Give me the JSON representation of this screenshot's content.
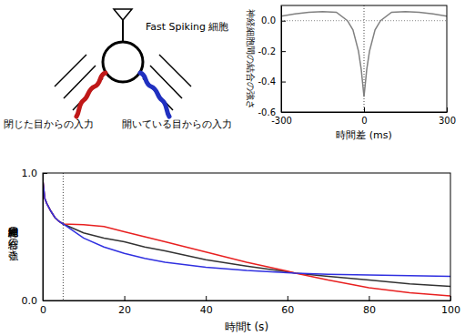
{
  "diagram": {
    "labels": {
      "neuron": "Fast Spiking 細胞",
      "closed_eye": "閉じた目からの入力",
      "open_eye": "開いている目からの入力"
    }
  },
  "chart_data": [
    {
      "type": "line",
      "x_label": "時間差 (ms)",
      "y_label": "神経細胞間の結合の強さ",
      "x": [
        -300,
        -250,
        -200,
        -150,
        -100,
        -60,
        -40,
        -20,
        -10,
        0,
        10,
        20,
        40,
        60,
        100,
        150,
        200,
        250,
        300
      ],
      "values": [
        0.03,
        0.045,
        0.055,
        0.06,
        0.055,
        0.0,
        -0.06,
        -0.2,
        -0.32,
        -0.5,
        -0.32,
        -0.2,
        -0.06,
        0.0,
        0.055,
        0.06,
        0.055,
        0.045,
        0.03
      ],
      "color": "#808080",
      "xlim": [
        -300,
        300
      ],
      "ylim": [
        -0.6,
        0.1
      ],
      "xticks": [
        -300,
        0,
        300
      ],
      "yticks": [
        {
          "value": 0,
          "label": "0.0"
        },
        -0.2,
        -0.4,
        -0.6
      ],
      "hline": 0,
      "vline": 0
    },
    {
      "type": "line",
      "x_label": "時間t (s)",
      "y_label": "神経細胞間の結合の強さ",
      "x": [
        0,
        0.5,
        1,
        2,
        3,
        4,
        5,
        10,
        15,
        20,
        25,
        30,
        40,
        50,
        60,
        62,
        70,
        80,
        90,
        100
      ],
      "series": [
        {
          "color": "#333333",
          "values": [
            0.95,
            0.8,
            0.76,
            0.7,
            0.65,
            0.62,
            0.6,
            0.53,
            0.49,
            0.46,
            0.42,
            0.39,
            0.32,
            0.27,
            0.225,
            0.214,
            0.19,
            0.16,
            0.13,
            0.11
          ]
        },
        {
          "color": "#e82020",
          "values": [
            0.95,
            0.8,
            0.76,
            0.7,
            0.65,
            0.62,
            0.6,
            0.595,
            0.58,
            0.54,
            0.5,
            0.46,
            0.38,
            0.3,
            0.23,
            0.214,
            0.16,
            0.1,
            0.06,
            0.036
          ]
        },
        {
          "color": "#3030e0",
          "values": [
            0.95,
            0.8,
            0.76,
            0.7,
            0.65,
            0.62,
            0.6,
            0.49,
            0.42,
            0.37,
            0.33,
            0.3,
            0.26,
            0.235,
            0.218,
            0.214,
            0.205,
            0.2,
            0.195,
            0.19
          ]
        }
      ],
      "xlim": [
        0,
        100
      ],
      "ylim": [
        0,
        1
      ],
      "xticks": [
        0,
        20,
        40,
        60,
        80,
        100
      ],
      "yticks": [
        {
          "value": 0,
          "label": "0.0"
        },
        {
          "value": 1,
          "label": "1.0"
        }
      ],
      "vline": 5
    }
  ]
}
